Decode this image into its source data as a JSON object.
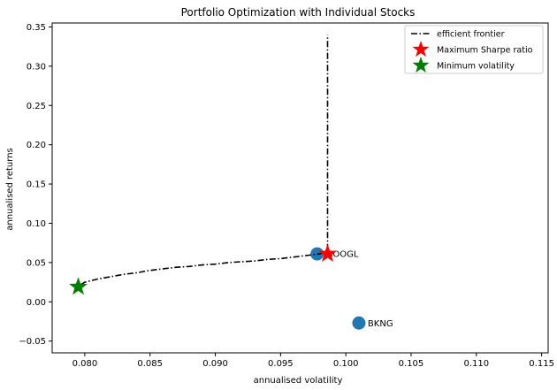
{
  "chart_data": {
    "type": "scatter",
    "title": "Portfolio Optimization with Individual Stocks",
    "xlabel": "annualised volatility",
    "ylabel": "annualised returns",
    "xlim": [
      0.0775,
      0.1155
    ],
    "ylim": [
      -0.065,
      0.355
    ],
    "xticks": [
      0.08,
      0.085,
      0.09,
      0.095,
      0.1,
      0.105,
      0.11,
      0.115
    ],
    "xtick_labels": [
      "0.080",
      "0.085",
      "0.090",
      "0.095",
      "0.100",
      "0.105",
      "0.110",
      "0.115"
    ],
    "yticks": [
      -0.05,
      0.0,
      0.05,
      0.1,
      0.15,
      0.2,
      0.25,
      0.3,
      0.35
    ],
    "ytick_labels": [
      "−0.05",
      "0.00",
      "0.05",
      "0.10",
      "0.15",
      "0.20",
      "0.25",
      "0.30",
      "0.35"
    ],
    "grid": false,
    "legend_position": "top-right",
    "stocks": [
      {
        "name": "GOOGL",
        "x": 0.0978,
        "y": 0.061,
        "color": "#1f77b4"
      },
      {
        "name": "BKNG",
        "x": 0.101,
        "y": -0.027,
        "color": "#1f77b4"
      }
    ],
    "series": [
      {
        "name": "efficient frontier",
        "style": "dashdot",
        "color": "#000000",
        "x": [
          0.0797,
          0.08,
          0.081,
          0.082,
          0.083,
          0.084,
          0.085,
          0.086,
          0.087,
          0.088,
          0.089,
          0.09,
          0.091,
          0.092,
          0.093,
          0.094,
          0.095,
          0.096,
          0.097,
          0.098,
          0.0986,
          0.0986,
          0.0986,
          0.0986,
          0.0986,
          0.0986,
          0.0986,
          0.0986
        ],
        "y": [
          0.022,
          0.025,
          0.029,
          0.032,
          0.035,
          0.037,
          0.04,
          0.042,
          0.044,
          0.045,
          0.047,
          0.048,
          0.05,
          0.051,
          0.052,
          0.054,
          0.055,
          0.057,
          0.059,
          0.061,
          0.065,
          0.08,
          0.12,
          0.16,
          0.2,
          0.25,
          0.3,
          0.34
        ]
      }
    ],
    "markers": [
      {
        "name": "Maximum Sharpe ratio",
        "x": 0.0986,
        "y": 0.061,
        "color": "#ff0000",
        "shape": "star"
      },
      {
        "name": "Minimum volatility",
        "x": 0.0795,
        "y": 0.019,
        "color": "#008000",
        "shape": "star"
      }
    ]
  }
}
